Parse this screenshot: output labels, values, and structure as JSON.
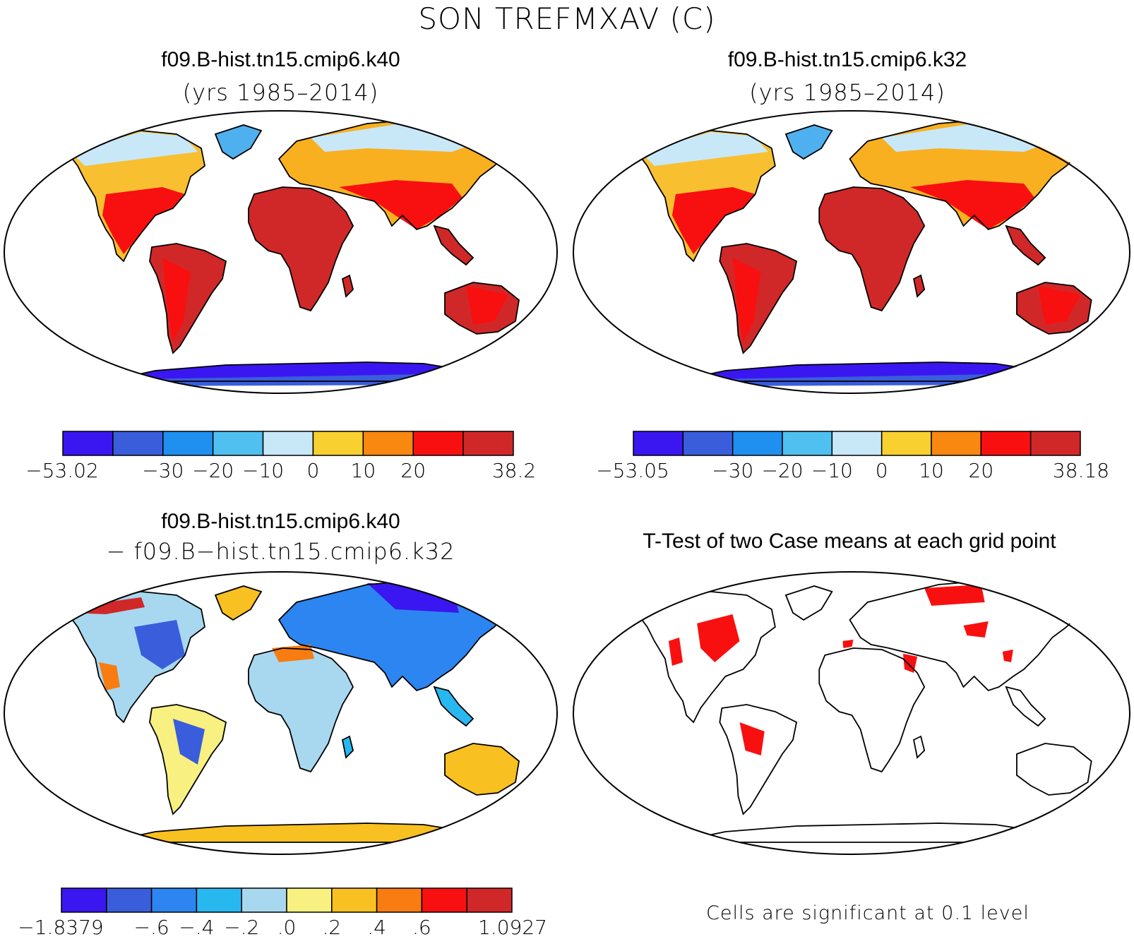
{
  "figure": {
    "title": "SON TREFMXAV (C)"
  },
  "panels": [
    {
      "id": "case1",
      "title": "f09.B-hist.tn15.cmip6.k40",
      "subtitle": "(yrs 1985–2014)",
      "colorbar": {
        "colors": [
          "#3a17f0",
          "#3a5ddc",
          "#1f8ff0",
          "#4fc0f0",
          "#c8e8f8",
          "#f8d030",
          "#f88810",
          "#f81010",
          "#d02828"
        ],
        "labels": [
          "−53.02",
          "−30",
          "−20",
          "−10",
          "0",
          "10",
          "20",
          "38.2"
        ]
      }
    },
    {
      "id": "case2",
      "title": "f09.B-hist.tn15.cmip6.k32",
      "subtitle": "(yrs 1985–2014)",
      "colorbar": {
        "colors": [
          "#3a17f0",
          "#3a5ddc",
          "#1f8ff0",
          "#4fc0f0",
          "#c8e8f8",
          "#f8d030",
          "#f88810",
          "#f81010",
          "#d02828"
        ],
        "labels": [
          "−53.05",
          "−30",
          "−20",
          "−10",
          "0",
          "10",
          "20",
          "38.18"
        ]
      }
    },
    {
      "id": "difference",
      "title": "f09.B-hist.tn15.cmip6.k40",
      "subtitle": "− f09.B−hist.tn15.cmip6.k32",
      "colorbar": {
        "colors": [
          "#3a17f0",
          "#3a5ddc",
          "#2c85f0",
          "#28b8f0",
          "#a8d8f0",
          "#f8f080",
          "#f8c020",
          "#f87c10",
          "#f81010",
          "#d02828"
        ],
        "labels": [
          "−1.8379",
          "−.6",
          "−.4",
          "−.2",
          ".0",
          ".2",
          ".4",
          ".6",
          "1.0927"
        ]
      }
    },
    {
      "id": "ttest",
      "title": "T-Test of two Case means at each grid point",
      "note": "Cells are significant at 0.1 level",
      "significance_color": "#f81010"
    }
  ]
}
